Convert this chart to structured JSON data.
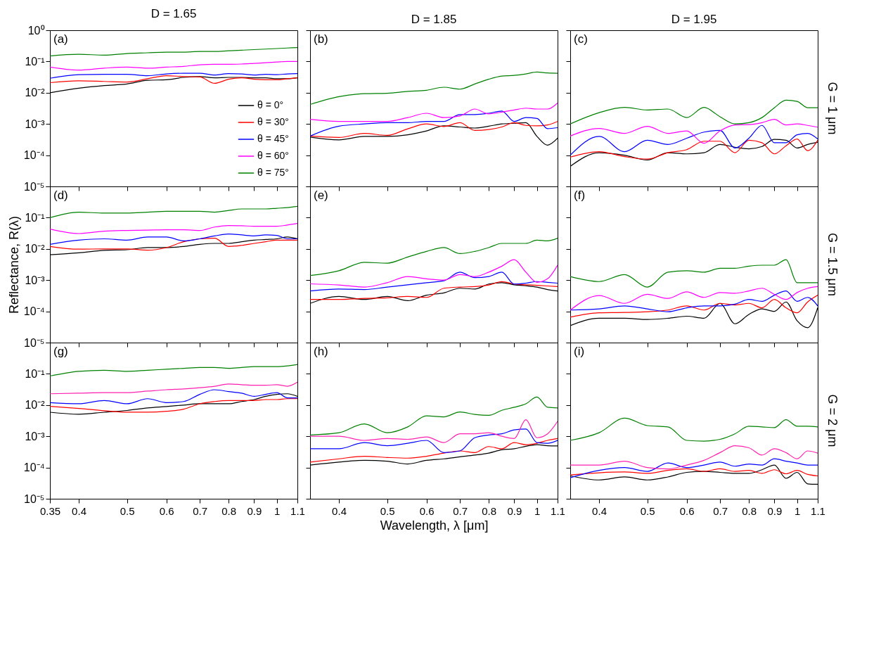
{
  "chart_data": [
    {
      "type": "line",
      "title": "D = 1.65",
      "annotations": [
        "(a)"
      ],
      "log": "xy",
      "legend": "bottom right",
      "tick_labels": "y",
      "xlim": [
        0.35,
        1.1
      ],
      "ylim": [
        1e-05,
        1
      ],
      "xticks": [
        0.4,
        0.5,
        0.6,
        0.7,
        0.8,
        0.9,
        1,
        1.1
      ],
      "yticks": [
        {
          "value": 1,
          "label": "10⁰"
        },
        {
          "value": 0.1,
          "label": "10⁻¹"
        },
        {
          "value": 0.01,
          "label": "10⁻²"
        },
        {
          "value": 0.001,
          "label": "10⁻³"
        },
        {
          "value": 0.0001,
          "label": "10⁻⁴"
        },
        {
          "value": 1e-05,
          "label": "10⁻⁵"
        }
      ],
      "x": [
        0.35,
        0.4,
        0.45,
        0.5,
        0.55,
        0.6,
        0.65,
        0.7,
        0.75,
        0.8,
        0.85,
        0.9,
        0.95,
        1,
        1.05,
        1.1
      ],
      "series": [
        {
          "name": "θ = 0°",
          "color": "#000000",
          "values": [
            0.01,
            0.014,
            0.017,
            0.019,
            0.025,
            0.026,
            0.031,
            0.033,
            0.03,
            0.031,
            0.031,
            0.03,
            0.03,
            0.028,
            0.028,
            0.03
          ]
        },
        {
          "name": "θ = 30°",
          "color": "#ff0000",
          "values": [
            0.021,
            0.024,
            0.023,
            0.022,
            0.028,
            0.035,
            0.033,
            0.032,
            0.02,
            0.027,
            0.03,
            0.027,
            0.026,
            0.026,
            0.028,
            0.03
          ]
        },
        {
          "name": "θ = 45°",
          "color": "#0000ff",
          "values": [
            0.029,
            0.038,
            0.039,
            0.039,
            0.035,
            0.04,
            0.042,
            0.042,
            0.037,
            0.041,
            0.04,
            0.037,
            0.039,
            0.038,
            0.04,
            0.041
          ]
        },
        {
          "name": "θ = 60°",
          "color": "#ff00ff",
          "values": [
            0.066,
            0.053,
            0.061,
            0.066,
            0.061,
            0.066,
            0.07,
            0.078,
            0.081,
            0.081,
            0.083,
            0.087,
            0.091,
            0.096,
            0.1,
            0.1
          ]
        },
        {
          "name": "θ = 75°",
          "color": "#008000",
          "values": [
            0.15,
            0.17,
            0.16,
            0.18,
            0.19,
            0.2,
            0.2,
            0.21,
            0.21,
            0.22,
            0.23,
            0.24,
            0.25,
            0.26,
            0.27,
            0.28
          ]
        }
      ]
    },
    {
      "type": "line",
      "title": "D = 1.85",
      "annotations": [
        "(b)"
      ],
      "log": "xy",
      "tick_labels": false,
      "xlim": [
        0.35,
        1.1
      ],
      "ylim": [
        1e-05,
        1
      ],
      "xticks": [
        0.4,
        0.5,
        0.6,
        0.7,
        0.8,
        0.9,
        1,
        1.1
      ],
      "yticks": [
        1,
        0.1,
        0.01,
        0.001,
        0.0001,
        1e-05
      ],
      "x": [
        0.35,
        0.4,
        0.45,
        0.5,
        0.55,
        0.6,
        0.65,
        0.7,
        0.75,
        0.8,
        0.85,
        0.9,
        0.95,
        1,
        1.05,
        1.1
      ],
      "series": [
        {
          "color": "#000000",
          "values": [
            0.00038,
            0.00031,
            0.0004,
            0.0004,
            0.00045,
            0.0006,
            0.00087,
            0.0008,
            0.00074,
            0.00085,
            0.001,
            0.00105,
            0.0011,
            0.0004,
            0.00021,
            0.00035
          ]
        },
        {
          "color": "#ff0000",
          "values": [
            0.00041,
            0.00037,
            0.0005,
            0.00043,
            0.0007,
            0.001,
            0.00083,
            0.0011,
            0.00062,
            0.00066,
            0.0008,
            0.0011,
            0.0009,
            0.00087,
            0.00093,
            0.0012
          ]
        },
        {
          "color": "#0000ff",
          "values": [
            0.00041,
            0.00085,
            0.001,
            0.0011,
            0.0011,
            0.0012,
            0.0012,
            0.002,
            0.002,
            0.0022,
            0.0026,
            0.0012,
            0.0016,
            0.0015,
            0.00071,
            0.00076
          ]
        },
        {
          "color": "#ff00ff",
          "values": [
            0.0014,
            0.0012,
            0.0012,
            0.0012,
            0.0016,
            0.0022,
            0.0016,
            0.0018,
            0.003,
            0.0021,
            0.0024,
            0.0028,
            0.0032,
            0.003,
            0.003,
            0.0047
          ]
        },
        {
          "color": "#008000",
          "values": [
            0.0042,
            0.0075,
            0.0093,
            0.0096,
            0.011,
            0.012,
            0.015,
            0.013,
            0.019,
            0.027,
            0.034,
            0.036,
            0.04,
            0.046,
            0.043,
            0.042
          ]
        }
      ]
    },
    {
      "type": "line",
      "title": "D = 1.95",
      "annotations": [
        "(c)",
        "G = 1 μm"
      ],
      "log": "xy",
      "tick_labels": false,
      "xlim": [
        0.35,
        1.1
      ],
      "ylim": [
        1e-05,
        1
      ],
      "xticks": [
        0.4,
        0.5,
        0.6,
        0.7,
        0.8,
        0.9,
        1,
        1.1
      ],
      "yticks": [
        1,
        0.1,
        0.01,
        0.001,
        0.0001,
        1e-05
      ],
      "x": [
        0.35,
        0.4,
        0.45,
        0.5,
        0.55,
        0.6,
        0.65,
        0.7,
        0.75,
        0.8,
        0.85,
        0.9,
        0.95,
        1,
        1.05,
        1.1
      ],
      "series": [
        {
          "color": "#000000",
          "values": [
            4.4e-05,
            0.00012,
            0.0001,
            7e-05,
            0.00012,
            0.00011,
            0.00012,
            0.00022,
            0.00018,
            0.00016,
            0.00019,
            0.00032,
            0.0003,
            0.00017,
            0.00022,
            0.00026
          ]
        },
        {
          "color": "#ff0000",
          "values": [
            8.7e-05,
            0.00013,
            9e-05,
            7.5e-05,
            0.00012,
            0.00015,
            0.00028,
            0.00028,
            0.00012,
            0.0003,
            0.00025,
            0.00011,
            0.0002,
            0.00033,
            0.00014,
            0.0003
          ]
        },
        {
          "color": "#0000ff",
          "values": [
            0.0001,
            0.0004,
            0.00013,
            0.0003,
            0.00022,
            0.00035,
            0.00055,
            0.00062,
            0.00017,
            0.00035,
            0.0009,
            0.00025,
            0.00025,
            0.00045,
            0.0005,
            0.00033
          ]
        },
        {
          "color": "#ff00ff",
          "values": [
            0.00041,
            0.00072,
            0.0005,
            0.00084,
            0.0005,
            0.0006,
            0.00024,
            0.0006,
            0.00093,
            0.00095,
            0.0011,
            0.0014,
            0.00093,
            0.001,
            0.0009,
            0.00079
          ]
        },
        {
          "color": "#008000",
          "values": [
            0.001,
            0.0023,
            0.0034,
            0.0028,
            0.003,
            0.0016,
            0.0034,
            0.0017,
            0.001,
            0.0011,
            0.0016,
            0.0033,
            0.0058,
            0.0053,
            0.0033,
            0.0033
          ]
        }
      ]
    },
    {
      "type": "line",
      "ylabel": "Reflectance, R(λ)",
      "annotations": [
        "(d)"
      ],
      "log": "xy",
      "tick_labels": "y",
      "xlim": [
        0.35,
        1.1
      ],
      "ylim": [
        1e-05,
        1
      ],
      "xticks": [
        0.4,
        0.5,
        0.6,
        0.7,
        0.8,
        0.9,
        1,
        1.1
      ],
      "yticks": [
        {
          "value": 1,
          "label": null
        },
        {
          "value": 0.1,
          "label": "10⁻¹"
        },
        {
          "value": 0.01,
          "label": "10⁻²"
        },
        {
          "value": 0.001,
          "label": "10⁻³"
        },
        {
          "value": 0.0001,
          "label": "10⁻⁴"
        },
        {
          "value": 1e-05,
          "label": "10⁻⁵"
        }
      ],
      "x": [
        0.35,
        0.4,
        0.45,
        0.5,
        0.55,
        0.6,
        0.65,
        0.7,
        0.75,
        0.8,
        0.85,
        0.9,
        0.95,
        1,
        1.05,
        1.1
      ],
      "series": [
        {
          "color": "#000000",
          "values": [
            0.0065,
            0.0075,
            0.009,
            0.0094,
            0.011,
            0.011,
            0.012,
            0.014,
            0.015,
            0.015,
            0.017,
            0.019,
            0.02,
            0.021,
            0.024,
            0.021
          ]
        },
        {
          "color": "#ff0000",
          "values": [
            0.012,
            0.0098,
            0.01,
            0.01,
            0.0091,
            0.011,
            0.017,
            0.021,
            0.022,
            0.012,
            0.013,
            0.015,
            0.017,
            0.019,
            0.019,
            0.019
          ]
        },
        {
          "color": "#0000ff",
          "values": [
            0.014,
            0.019,
            0.021,
            0.019,
            0.024,
            0.024,
            0.018,
            0.021,
            0.026,
            0.03,
            0.028,
            0.026,
            0.028,
            0.027,
            0.021,
            0.021
          ]
        },
        {
          "color": "#ff00ff",
          "values": [
            0.043,
            0.031,
            0.037,
            0.039,
            0.04,
            0.041,
            0.041,
            0.039,
            0.05,
            0.056,
            0.055,
            0.053,
            0.053,
            0.053,
            0.058,
            0.065
          ]
        },
        {
          "color": "#008000",
          "values": [
            0.1,
            0.15,
            0.14,
            0.14,
            0.15,
            0.16,
            0.16,
            0.16,
            0.15,
            0.17,
            0.19,
            0.19,
            0.19,
            0.2,
            0.21,
            0.23
          ]
        }
      ]
    },
    {
      "type": "line",
      "annotations": [
        "(e)"
      ],
      "log": "xy",
      "tick_labels": false,
      "xlim": [
        0.35,
        1.1
      ],
      "ylim": [
        1e-05,
        1
      ],
      "xticks": [
        0.4,
        0.5,
        0.6,
        0.7,
        0.8,
        0.9,
        1,
        1.1
      ],
      "yticks": [
        1,
        0.1,
        0.01,
        0.001,
        0.0001,
        1e-05
      ],
      "x": [
        0.35,
        0.4,
        0.45,
        0.5,
        0.55,
        0.6,
        0.65,
        0.7,
        0.75,
        0.8,
        0.85,
        0.9,
        0.95,
        1,
        1.05,
        1.1
      ],
      "series": [
        {
          "color": "#000000",
          "values": [
            0.00018,
            0.0003,
            0.00024,
            0.0003,
            0.00022,
            0.00033,
            0.00039,
            0.00055,
            0.00052,
            0.00075,
            0.00083,
            0.00071,
            0.00066,
            0.0006,
            0.0005,
            0.00045
          ]
        },
        {
          "color": "#ff0000",
          "values": [
            0.00024,
            0.00024,
            0.00026,
            0.00027,
            0.0003,
            0.00028,
            0.00055,
            0.0006,
            0.00062,
            0.0007,
            0.00089,
            0.00075,
            0.00071,
            0.00068,
            0.00065,
            0.00062
          ]
        },
        {
          "color": "#0000ff",
          "values": [
            0.00045,
            0.00052,
            0.0005,
            0.0006,
            0.00071,
            0.00083,
            0.00095,
            0.0018,
            0.0012,
            0.0013,
            0.0018,
            0.00075,
            0.0008,
            0.0009,
            0.00085,
            0.0008
          ]
        },
        {
          "color": "#ff00ff",
          "values": [
            0.00076,
            0.0007,
            0.0006,
            0.00083,
            0.0013,
            0.0011,
            0.001,
            0.0015,
            0.0013,
            0.0018,
            0.0028,
            0.0045,
            0.0018,
            0.00085,
            0.0011,
            0.003
          ]
        },
        {
          "color": "#008000",
          "values": [
            0.0014,
            0.002,
            0.0037,
            0.0035,
            0.0055,
            0.0083,
            0.011,
            0.0071,
            0.0083,
            0.011,
            0.015,
            0.015,
            0.015,
            0.019,
            0.018,
            0.022
          ]
        }
      ]
    },
    {
      "type": "line",
      "annotations": [
        "(f)",
        "G = 1.5 μm"
      ],
      "log": "xy",
      "tick_labels": false,
      "xlim": [
        0.35,
        1.1
      ],
      "ylim": [
        1e-05,
        1
      ],
      "xticks": [
        0.4,
        0.5,
        0.6,
        0.7,
        0.8,
        0.9,
        1,
        1.1
      ],
      "yticks": [
        1,
        0.1,
        0.01,
        0.001,
        0.0001,
        1e-05
      ],
      "x": [
        0.35,
        0.4,
        0.45,
        0.5,
        0.55,
        0.6,
        0.65,
        0.7,
        0.75,
        0.8,
        0.85,
        0.9,
        0.95,
        1,
        1.05,
        1.1
      ],
      "series": [
        {
          "color": "#000000",
          "values": [
            3.5e-05,
            6e-05,
            6e-05,
            5.5e-05,
            6e-05,
            7e-05,
            6e-05,
            0.00018,
            4e-05,
            8e-05,
            0.00012,
            0.0001,
            0.0002,
            5e-05,
            3e-05,
            0.00013
          ]
        },
        {
          "color": "#ff0000",
          "values": [
            6.5e-05,
            9e-05,
            9.2e-05,
            9.7e-05,
            0.00011,
            0.00015,
            0.00011,
            0.00018,
            0.00016,
            0.00018,
            0.00013,
            0.00024,
            0.00013,
            9e-05,
            0.0002,
            0.00033
          ]
        },
        {
          "color": "#0000ff",
          "values": [
            0.00011,
            0.00012,
            0.00015,
            0.00012,
            9.7e-05,
            0.00013,
            0.00015,
            0.00015,
            0.00017,
            0.00024,
            0.00021,
            0.00033,
            0.00045,
            0.00021,
            0.00028,
            0.00015
          ]
        },
        {
          "color": "#ff00ff",
          "values": [
            0.00011,
            0.00032,
            0.00018,
            0.00035,
            0.00026,
            0.00042,
            0.00028,
            0.0004,
            0.00038,
            0.00045,
            0.00055,
            0.00035,
            0.00024,
            0.0004,
            0.00055,
            0.00062
          ]
        },
        {
          "color": "#008000",
          "values": [
            0.0013,
            0.0009,
            0.0015,
            0.0006,
            0.0018,
            0.002,
            0.0018,
            0.0024,
            0.0024,
            0.0028,
            0.003,
            0.003,
            0.0045,
            0.00083,
            0.00083,
            0.00083
          ]
        }
      ]
    },
    {
      "type": "line",
      "annotations": [
        "(g)"
      ],
      "log": "xy",
      "xlim": [
        0.35,
        1.1
      ],
      "ylim": [
        1e-05,
        1
      ],
      "xticks": [
        0.35,
        0.4,
        0.5,
        0.6,
        0.7,
        0.8,
        0.9,
        1,
        1.1
      ],
      "yticks": [
        {
          "value": 1,
          "label": null
        },
        {
          "value": 0.1,
          "label": "10⁻¹"
        },
        {
          "value": 0.01,
          "label": "10⁻²"
        },
        {
          "value": 0.001,
          "label": "10⁻³"
        },
        {
          "value": 0.0001,
          "label": "10⁻⁴"
        },
        {
          "value": 1e-05,
          "label": "10⁻⁵"
        }
      ],
      "x": [
        0.35,
        0.4,
        0.45,
        0.5,
        0.55,
        0.6,
        0.65,
        0.7,
        0.75,
        0.8,
        0.85,
        0.9,
        0.95,
        1,
        1.05,
        1.1
      ],
      "series": [
        {
          "color": "#000000",
          "values": [
            0.0059,
            0.0051,
            0.0059,
            0.0067,
            0.0081,
            0.009,
            0.01,
            0.011,
            0.011,
            0.011,
            0.013,
            0.015,
            0.019,
            0.022,
            0.023,
            0.019
          ]
        },
        {
          "color": "#ff0000",
          "values": [
            0.0091,
            0.0078,
            0.0066,
            0.0059,
            0.0059,
            0.0063,
            0.0074,
            0.011,
            0.013,
            0.014,
            0.014,
            0.014,
            0.015,
            0.015,
            0.016,
            0.016
          ]
        },
        {
          "color": "#0000ff",
          "values": [
            0.012,
            0.011,
            0.014,
            0.011,
            0.016,
            0.012,
            0.013,
            0.022,
            0.031,
            0.027,
            0.024,
            0.019,
            0.022,
            0.025,
            0.017,
            0.017
          ]
        },
        {
          "color": "#ff20b0",
          "values": [
            0.023,
            0.024,
            0.025,
            0.025,
            0.028,
            0.031,
            0.033,
            0.036,
            0.04,
            0.047,
            0.045,
            0.043,
            0.043,
            0.045,
            0.04,
            0.054
          ]
        },
        {
          "color": "#008000",
          "values": [
            0.085,
            0.12,
            0.13,
            0.12,
            0.13,
            0.14,
            0.15,
            0.16,
            0.16,
            0.15,
            0.16,
            0.17,
            0.17,
            0.17,
            0.18,
            0.2
          ]
        }
      ]
    },
    {
      "type": "line",
      "xlabel": "Wavelength, λ [μm]",
      "annotations": [
        "(h)"
      ],
      "log": "xy",
      "tick_labels": "x",
      "xlim": [
        0.35,
        1.1
      ],
      "ylim": [
        1e-05,
        1
      ],
      "xticks": [
        0.4,
        0.5,
        0.6,
        0.7,
        0.8,
        0.9,
        1,
        1.1
      ],
      "yticks": [
        1,
        0.1,
        0.01,
        0.001,
        0.0001,
        1e-05
      ],
      "x": [
        0.35,
        0.4,
        0.45,
        0.5,
        0.55,
        0.6,
        0.65,
        0.7,
        0.75,
        0.8,
        0.85,
        0.9,
        0.95,
        1,
        1.05,
        1.1
      ],
      "series": [
        {
          "color": "#000000",
          "values": [
            0.00012,
            0.00015,
            0.00017,
            0.00016,
            0.00013,
            0.00017,
            0.00019,
            0.00022,
            0.00025,
            0.00029,
            0.00037,
            0.0004,
            0.00048,
            0.00054,
            0.0005,
            0.00049
          ]
        },
        {
          "color": "#ff0000",
          "values": [
            0.00015,
            0.00019,
            0.00023,
            0.00021,
            0.0002,
            0.00023,
            0.00029,
            0.00034,
            0.0003,
            0.00047,
            0.0004,
            0.00063,
            0.00054,
            0.0006,
            0.00074,
            0.00085
          ]
        },
        {
          "color": "#0000ff",
          "values": [
            0.0004,
            0.0004,
            0.00063,
            0.0005,
            0.0006,
            0.00074,
            0.0003,
            0.00034,
            0.0009,
            0.0011,
            0.0012,
            0.0016,
            0.0017,
            0.00063,
            0.0006,
            0.00074
          ]
        },
        {
          "color": "#ff20b0",
          "values": [
            0.001,
            0.001,
            0.00074,
            0.00085,
            0.0008,
            0.00095,
            0.00063,
            0.0012,
            0.0012,
            0.0013,
            0.001,
            0.00085,
            0.0034,
            0.0009,
            0.0012,
            0.003
          ]
        },
        {
          "color": "#008000",
          "values": [
            0.0011,
            0.0013,
            0.0025,
            0.0013,
            0.002,
            0.0045,
            0.0042,
            0.006,
            0.005,
            0.0047,
            0.0068,
            0.0085,
            0.011,
            0.018,
            0.0085,
            0.0081
          ]
        }
      ]
    },
    {
      "type": "line",
      "annotations": [
        "(i)",
        "G = 2 μm"
      ],
      "log": "xy",
      "tick_labels": "x",
      "xlim": [
        0.35,
        1.1
      ],
      "ylim": [
        1e-05,
        1
      ],
      "xticks": [
        0.4,
        0.5,
        0.6,
        0.7,
        0.8,
        0.9,
        1,
        1.1
      ],
      "yticks": [
        1,
        0.1,
        0.01,
        0.001,
        0.0001,
        1e-05
      ],
      "x": [
        0.35,
        0.4,
        0.45,
        0.5,
        0.55,
        0.6,
        0.65,
        0.7,
        0.75,
        0.8,
        0.85,
        0.9,
        0.95,
        1,
        1.05,
        1.1
      ],
      "series": [
        {
          "color": "#000000",
          "values": [
            5.4e-05,
            4e-05,
            5e-05,
            4e-05,
            5e-05,
            7e-05,
            7.5e-05,
            7e-05,
            6.5e-05,
            6.5e-05,
            8.5e-05,
            0.00012,
            4.5e-05,
            7e-05,
            3e-05,
            2.9e-05
          ]
        },
        {
          "color": "#ff0000",
          "values": [
            5.8e-05,
            6.8e-05,
            7.2e-05,
            6.5e-05,
            8.1e-05,
            9.1e-05,
            7.5e-05,
            9.1e-05,
            7.5e-05,
            8.1e-05,
            6.5e-05,
            8.5e-05,
            6.3e-05,
            8.1e-05,
            6e-05,
            5.4e-05
          ]
        },
        {
          "color": "#0000ff",
          "values": [
            4.7e-05,
            8.1e-05,
            0.0001,
            7.5e-05,
            0.00014,
            0.0001,
            0.00012,
            0.00015,
            0.00011,
            0.00013,
            0.00012,
            0.00019,
            0.00016,
            0.00014,
            0.00012,
            0.00012
          ]
        },
        {
          "color": "#ff20b0",
          "values": [
            0.00012,
            0.00012,
            0.00016,
            0.0001,
            9e-05,
            0.00012,
            0.00017,
            0.0003,
            0.0005,
            0.00043,
            0.00025,
            0.0004,
            0.0003,
            0.00019,
            0.00034,
            0.00029
          ]
        },
        {
          "color": "#008000",
          "values": [
            0.00074,
            0.0013,
            0.0038,
            0.0022,
            0.002,
            0.00074,
            0.0007,
            0.0008,
            0.0012,
            0.0021,
            0.002,
            0.0019,
            0.0034,
            0.0021,
            0.0021,
            0.002
          ]
        }
      ]
    }
  ]
}
